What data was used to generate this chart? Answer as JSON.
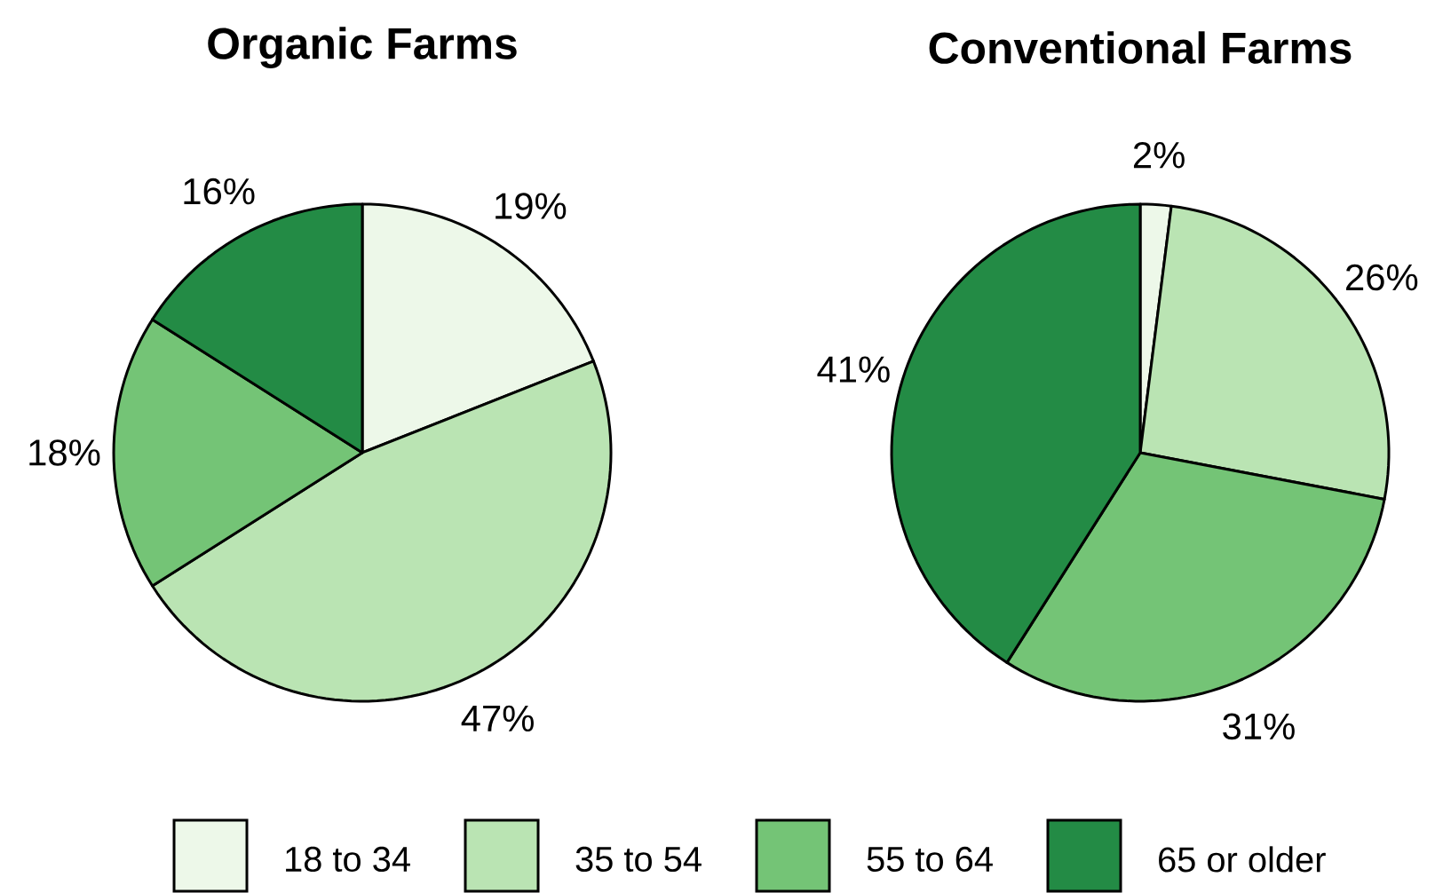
{
  "chart_data": [
    {
      "type": "pie",
      "title": "Organic Farms",
      "categories": [
        "18 to 34",
        "35 to 54",
        "55 to 64",
        "65 or older"
      ],
      "values": [
        19,
        47,
        18,
        16
      ],
      "value_labels": [
        "19%",
        "47%",
        "18%",
        "16%"
      ],
      "colors": [
        "#edf8e9",
        "#bae4b3",
        "#74c476",
        "#238b45"
      ],
      "legend": "bottom"
    },
    {
      "type": "pie",
      "title": "Conventional Farms",
      "categories": [
        null,
        null,
        null,
        null
      ],
      "values": [
        2,
        26,
        31,
        41
      ],
      "value_labels": [
        "2%",
        "26%",
        "31%",
        "41%"
      ],
      "colors": [
        "#edf8e9",
        "#bae4b3",
        "#74c476",
        "#238b45"
      ]
    }
  ]
}
